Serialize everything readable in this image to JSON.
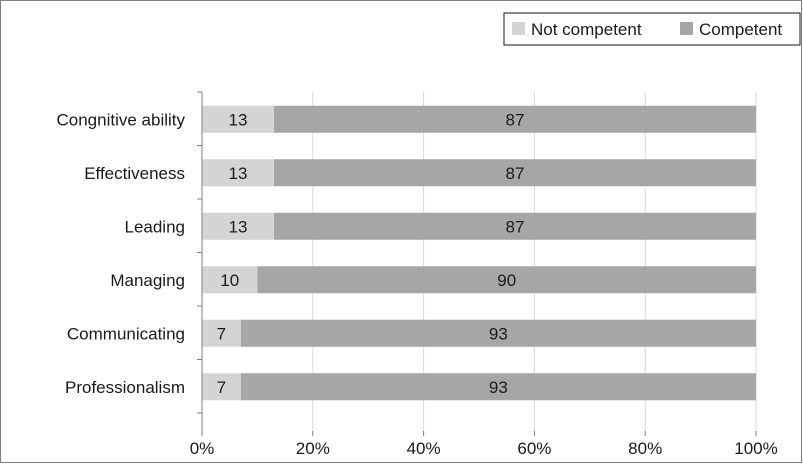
{
  "chart_data": {
    "type": "bar",
    "orientation": "horizontal",
    "stacked": true,
    "percent": true,
    "categories": [
      "Congnitive ability",
      "Effectiveness",
      "Leading",
      "Managing",
      "Communicating",
      "Professionalism"
    ],
    "series": [
      {
        "name": "Not competent",
        "values": [
          13,
          13,
          13,
          10,
          7,
          7
        ],
        "color": "#d4d4d4"
      },
      {
        "name": "Competent",
        "values": [
          87,
          87,
          87,
          90,
          93,
          93
        ],
        "color": "#a6a6a6"
      }
    ],
    "xlim": [
      0,
      100
    ],
    "xticks": [
      "0%",
      "20%",
      "40%",
      "60%",
      "80%",
      "100%"
    ],
    "title": "",
    "xlabel": "",
    "ylabel": "",
    "grid": true,
    "legend": "top-right"
  }
}
